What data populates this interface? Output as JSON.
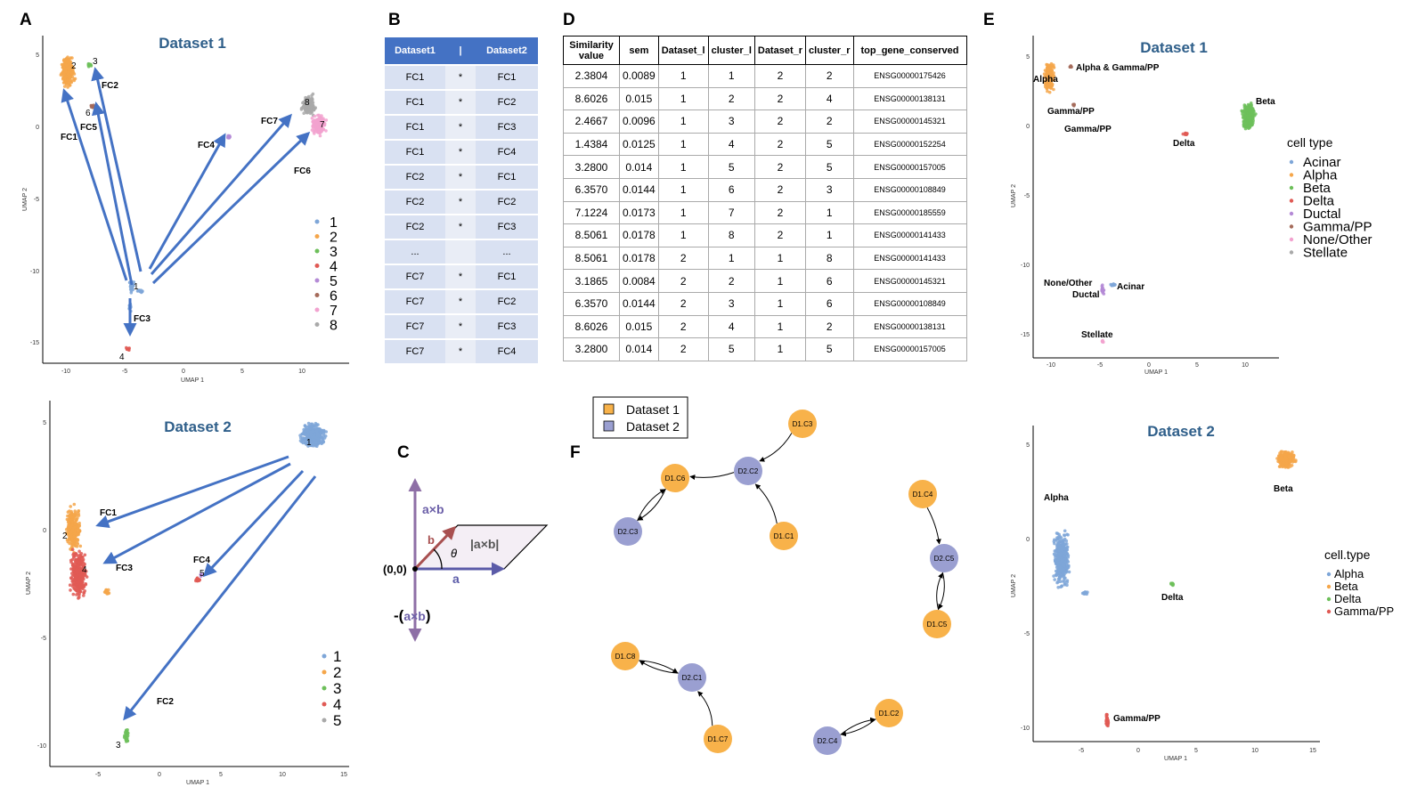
{
  "panel_labels": {
    "a": "A",
    "b": "B",
    "c": "C",
    "d": "D",
    "e": "E",
    "f": "F"
  },
  "colors": {
    "c1": "#7ea6d8",
    "c2": "#f5a64a",
    "c3": "#6dbf5a",
    "c4": "#e05a55",
    "c5": "#b48ad6",
    "c6": "#a56b5a",
    "c7": "#f2a2cf",
    "c8": "#a9a9a9",
    "arrow": "#4472c4",
    "title": "#2f5f8a",
    "d1node": "#f8b24a",
    "d2node": "#9a9fd1"
  },
  "panelA1": {
    "title": "Dataset 1",
    "xlabel": "UMAP 1",
    "ylabel": "UMAP 2",
    "xticks": [
      "-10",
      "-5",
      "0",
      "5",
      "10"
    ],
    "yticks": [
      "5",
      "0",
      "-5",
      "-10",
      "-15"
    ],
    "legend": [
      "1",
      "2",
      "3",
      "4",
      "5",
      "6",
      "7",
      "8"
    ],
    "cluster_labels": [
      "1",
      "2",
      "3",
      "4",
      "6",
      "7",
      "8"
    ],
    "arrows": [
      "FC1",
      "FC2",
      "FC3",
      "FC4",
      "FC5",
      "FC6",
      "FC7"
    ]
  },
  "panelA2": {
    "title": "Dataset 2",
    "xlabel": "UMAP 1",
    "ylabel": "UMAP 2",
    "xticks": [
      "-5",
      "0",
      "5",
      "10",
      "15"
    ],
    "yticks": [
      "5",
      "0",
      "-5",
      "-10"
    ],
    "legend": [
      "1",
      "2",
      "3",
      "4",
      "5"
    ],
    "cluster_labels": [
      "1",
      "2",
      "3",
      "4",
      "5"
    ],
    "arrows": [
      "FC1",
      "FC2",
      "FC3",
      "FC4"
    ]
  },
  "panelB": {
    "headers": [
      "Dataset1",
      "|",
      "Dataset2"
    ],
    "rows": [
      [
        "FC1",
        "*",
        "FC1"
      ],
      [
        "FC1",
        "*",
        "FC2"
      ],
      [
        "FC1",
        "*",
        "FC3"
      ],
      [
        "FC1",
        "*",
        "FC4"
      ],
      [
        "FC2",
        "*",
        "FC1"
      ],
      [
        "FC2",
        "*",
        "FC2"
      ],
      [
        "FC2",
        "*",
        "FC3"
      ],
      [
        "...",
        "",
        "..."
      ],
      [
        "FC7",
        "*",
        "FC1"
      ],
      [
        "FC7",
        "*",
        "FC2"
      ],
      [
        "FC7",
        "*",
        "FC3"
      ],
      [
        "FC7",
        "*",
        "FC4"
      ]
    ]
  },
  "panelC": {
    "axb": "a×b",
    "b": "b",
    "theta": "θ",
    "abs": "|a×b|",
    "origin": "(0,0)",
    "a": "a",
    "neg_prefix": "-(",
    "neg_axb": "a×b",
    "neg_suffix": ")"
  },
  "panelD": {
    "headers": [
      "Similarity value",
      "sem",
      "Dataset_l",
      "cluster_l",
      "Dataset_r",
      "cluster_r",
      "top_gene_conserved"
    ],
    "rows": [
      [
        "2.3804",
        "0.0089",
        "1",
        "1",
        "2",
        "2",
        "ENSG00000175426"
      ],
      [
        "8.6026",
        "0.015",
        "1",
        "2",
        "2",
        "4",
        "ENSG00000138131"
      ],
      [
        "2.4667",
        "0.0096",
        "1",
        "3",
        "2",
        "2",
        "ENSG00000145321"
      ],
      [
        "1.4384",
        "0.0125",
        "1",
        "4",
        "2",
        "5",
        "ENSG00000152254"
      ],
      [
        "3.2800",
        "0.014",
        "1",
        "5",
        "2",
        "5",
        "ENSG00000157005"
      ],
      [
        "6.3570",
        "0.0144",
        "1",
        "6",
        "2",
        "3",
        "ENSG00000108849"
      ],
      [
        "7.1224",
        "0.0173",
        "1",
        "7",
        "2",
        "1",
        "ENSG00000185559"
      ],
      [
        "8.5061",
        "0.0178",
        "1",
        "8",
        "2",
        "1",
        "ENSG00000141433"
      ],
      [
        "8.5061",
        "0.0178",
        "2",
        "1",
        "1",
        "8",
        "ENSG00000141433"
      ],
      [
        "3.1865",
        "0.0084",
        "2",
        "2",
        "1",
        "6",
        "ENSG00000145321"
      ],
      [
        "6.3570",
        "0.0144",
        "2",
        "3",
        "1",
        "6",
        "ENSG00000108849"
      ],
      [
        "8.6026",
        "0.015",
        "2",
        "4",
        "1",
        "2",
        "ENSG00000138131"
      ],
      [
        "3.2800",
        "0.014",
        "2",
        "5",
        "1",
        "5",
        "ENSG00000157005"
      ]
    ]
  },
  "panelE1": {
    "title": "Dataset 1",
    "xlabel": "UMAP 1",
    "ylabel": "UMAP 2",
    "xticks": [
      "-10",
      "-5",
      "0",
      "5",
      "10"
    ],
    "yticks": [
      "5",
      "0",
      "-5",
      "-10",
      "-15"
    ],
    "legend_title": "cell type",
    "legend": [
      "Acinar",
      "Alpha",
      "Beta",
      "Delta",
      "Ductal",
      "Gamma/PP",
      "None/Other",
      "Stellate"
    ],
    "labels": [
      "Alpha & Gamma/PP",
      "Alpha",
      "Gamma/PP",
      "Gamma/PP",
      "Beta",
      "Delta",
      "None/Other",
      "Acinar",
      "Ductal",
      "Stellate"
    ]
  },
  "panelE2": {
    "title": "Dataset 2",
    "xlabel": "UMAP 1",
    "ylabel": "UMAP 2",
    "xticks": [
      "-5",
      "0",
      "5",
      "10",
      "15"
    ],
    "yticks": [
      "5",
      "0",
      "-5",
      "-10"
    ],
    "legend_title": "cell.type",
    "legend": [
      "Alpha",
      "Beta",
      "Delta",
      "Gamma/PP"
    ],
    "labels": [
      "Alpha",
      "Beta",
      "Delta",
      "Gamma/PP"
    ]
  },
  "panelF": {
    "legend": [
      "Dataset 1",
      "Dataset 2"
    ],
    "nodes": [
      "D1.C3",
      "D2.C2",
      "D1.C6",
      "D2.C3",
      "D1.C1",
      "D1.C4",
      "D2.C5",
      "D1.C5",
      "D1.C8",
      "D2.C1",
      "D1.C7",
      "D2.C4",
      "D1.C2"
    ]
  }
}
